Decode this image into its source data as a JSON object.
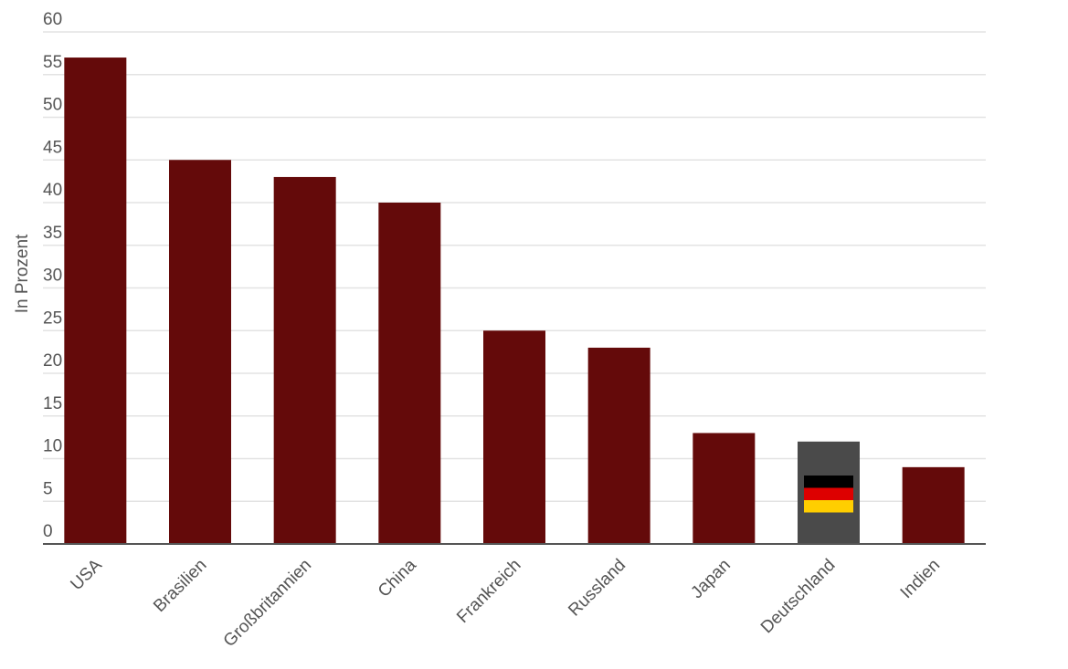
{
  "chart_data": {
    "type": "bar",
    "title": "",
    "xlabel": "",
    "ylabel": "In Prozent",
    "ylim": [
      0,
      60
    ],
    "ytick_step": 5,
    "yticks": [
      "0",
      "5",
      "10",
      "15",
      "20",
      "25",
      "30",
      "35",
      "40",
      "45",
      "50",
      "55",
      "60"
    ],
    "grid": true,
    "categories": [
      "USA",
      "Brasilien",
      "Großbritannien",
      "China",
      "Frankreich",
      "Russland",
      "Japan",
      "Deutschland",
      "Indien"
    ],
    "values": [
      57,
      45,
      43,
      40,
      25,
      23,
      13,
      12,
      9
    ],
    "highlight_category": "Deutschland",
    "highlight_icon": "germany-flag-icon",
    "colors": {
      "bar": "#640a0a",
      "highlight_bar": "#4a4a4a",
      "grid": "#e3e3e3",
      "axis": "#555555",
      "text": "#555555",
      "flag": [
        "#000000",
        "#dd0000",
        "#ffce00"
      ]
    }
  }
}
